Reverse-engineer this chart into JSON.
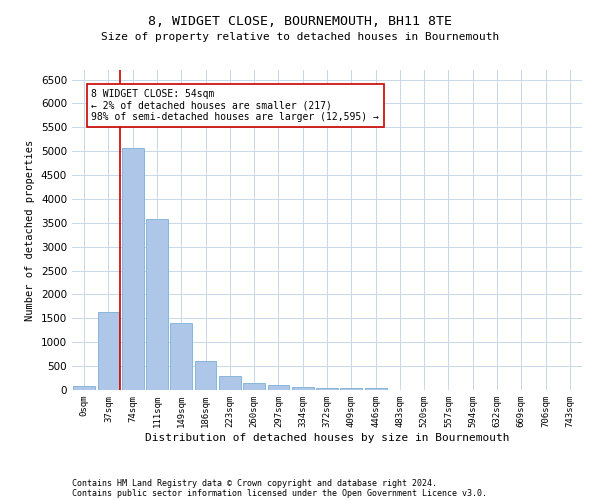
{
  "title": "8, WIDGET CLOSE, BOURNEMOUTH, BH11 8TE",
  "subtitle": "Size of property relative to detached houses in Bournemouth",
  "xlabel": "Distribution of detached houses by size in Bournemouth",
  "ylabel": "Number of detached properties",
  "bar_color": "#aec6e8",
  "bar_edgecolor": "#7aafd4",
  "grid_color": "#c8d8ea",
  "bg_color": "#ffffff",
  "categories": [
    "0sqm",
    "37sqm",
    "74sqm",
    "111sqm",
    "149sqm",
    "186sqm",
    "223sqm",
    "260sqm",
    "297sqm",
    "334sqm",
    "372sqm",
    "409sqm",
    "446sqm",
    "483sqm",
    "520sqm",
    "557sqm",
    "594sqm",
    "632sqm",
    "669sqm",
    "706sqm",
    "743sqm"
  ],
  "values": [
    75,
    1640,
    5060,
    3580,
    1410,
    615,
    295,
    155,
    95,
    65,
    50,
    45,
    50,
    0,
    0,
    0,
    0,
    0,
    0,
    0,
    0
  ],
  "ylim": [
    0,
    6700
  ],
  "yticks": [
    0,
    500,
    1000,
    1500,
    2000,
    2500,
    3000,
    3500,
    4000,
    4500,
    5000,
    5500,
    6000,
    6500
  ],
  "property_line_x": 1.47,
  "property_line_color": "#cc0000",
  "annotation_text": "8 WIDGET CLOSE: 54sqm\n← 2% of detached houses are smaller (217)\n98% of semi-detached houses are larger (12,595) →",
  "annotation_box_color": "#ffffff",
  "annotation_box_edgecolor": "#cc0000",
  "footer1": "Contains HM Land Registry data © Crown copyright and database right 2024.",
  "footer2": "Contains public sector information licensed under the Open Government Licence v3.0."
}
